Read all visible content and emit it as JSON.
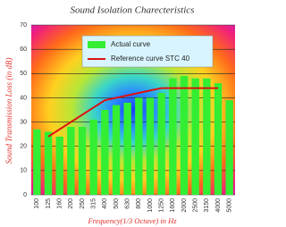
{
  "chart_data": {
    "type": "combo",
    "title": "Sound Isolation Charecteristics",
    "y_label": "Sound Transmission Loss (in dB)",
    "x_label": "Frequency(1/3 Octave) in Hz",
    "categories": [
      "100",
      "125",
      "160",
      "200",
      "250",
      "315",
      "400",
      "500",
      "630",
      "800",
      "1000",
      "1250",
      "1600",
      "2000",
      "2500",
      "3150",
      "4000",
      "5000"
    ],
    "series": [
      {
        "name": "Actual curve",
        "type": "bar",
        "color": "#33ee33",
        "values": [
          27,
          26,
          24,
          28,
          28,
          31,
          35,
          37,
          38,
          40,
          40,
          42,
          48,
          49,
          48,
          48,
          46,
          39
        ]
      },
      {
        "name": "Reference curve STC 40",
        "type": "line",
        "color": "#dd1111",
        "values": [
          null,
          24,
          27,
          30,
          33,
          36,
          39,
          40,
          41,
          42,
          43,
          44,
          44,
          44,
          44,
          44,
          44,
          null
        ]
      }
    ],
    "ylim": [
      0,
      70
    ],
    "yticks": [
      0,
      10,
      20,
      30,
      40,
      50,
      60,
      70
    ],
    "grid": true
  }
}
